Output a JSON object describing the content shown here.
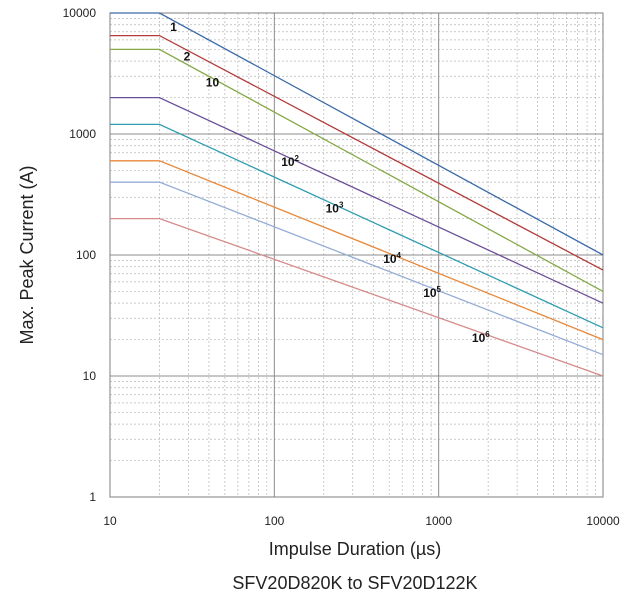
{
  "chart_data": {
    "type": "line",
    "xlabel": "Impulse Duration (µs)",
    "ylabel": "Max. Peak Current (A)",
    "caption": "SFV20D820K to SFV20D122K",
    "x_scale": "log",
    "y_scale": "log",
    "xlim": [
      10,
      10000
    ],
    "ylim": [
      1,
      10000
    ],
    "x_ticks": [
      "10",
      "100",
      "1000",
      "10000"
    ],
    "y_ticks": [
      "1",
      "10",
      "100",
      "1000",
      "10000"
    ],
    "grid": true,
    "legend": "none",
    "series": [
      {
        "label_base": "1",
        "label_exp": "",
        "color": "#3a6aa8",
        "x": [
          10,
          20,
          10000
        ],
        "y": [
          10000,
          10000,
          100
        ]
      },
      {
        "label_base": "2",
        "label_exp": "",
        "color": "#b23a3a",
        "x": [
          10,
          20,
          10000
        ],
        "y": [
          6500,
          6500,
          75
        ]
      },
      {
        "label_base": "10",
        "label_exp": "",
        "color": "#86a845",
        "x": [
          10,
          20,
          10000
        ],
        "y": [
          5000,
          5000,
          50
        ]
      },
      {
        "label_base": "10",
        "label_exp": "2",
        "color": "#6a4f98",
        "x": [
          10,
          20,
          10000
        ],
        "y": [
          2000,
          2000,
          40
        ]
      },
      {
        "label_base": "10",
        "label_exp": "3",
        "color": "#2f9cb0",
        "x": [
          10,
          20,
          10000
        ],
        "y": [
          1200,
          1200,
          25
        ]
      },
      {
        "label_base": "10",
        "label_exp": "4",
        "color": "#e7883a",
        "x": [
          10,
          20,
          10000
        ],
        "y": [
          600,
          600,
          20
        ]
      },
      {
        "label_base": "10",
        "label_exp": "5",
        "color": "#94acd4",
        "x": [
          10,
          20,
          10000
        ],
        "y": [
          400,
          400,
          15
        ]
      },
      {
        "label_base": "10",
        "label_exp": "6",
        "color": "#d68a8a",
        "x": [
          10,
          20,
          10000
        ],
        "y": [
          200,
          200,
          10
        ]
      }
    ]
  }
}
